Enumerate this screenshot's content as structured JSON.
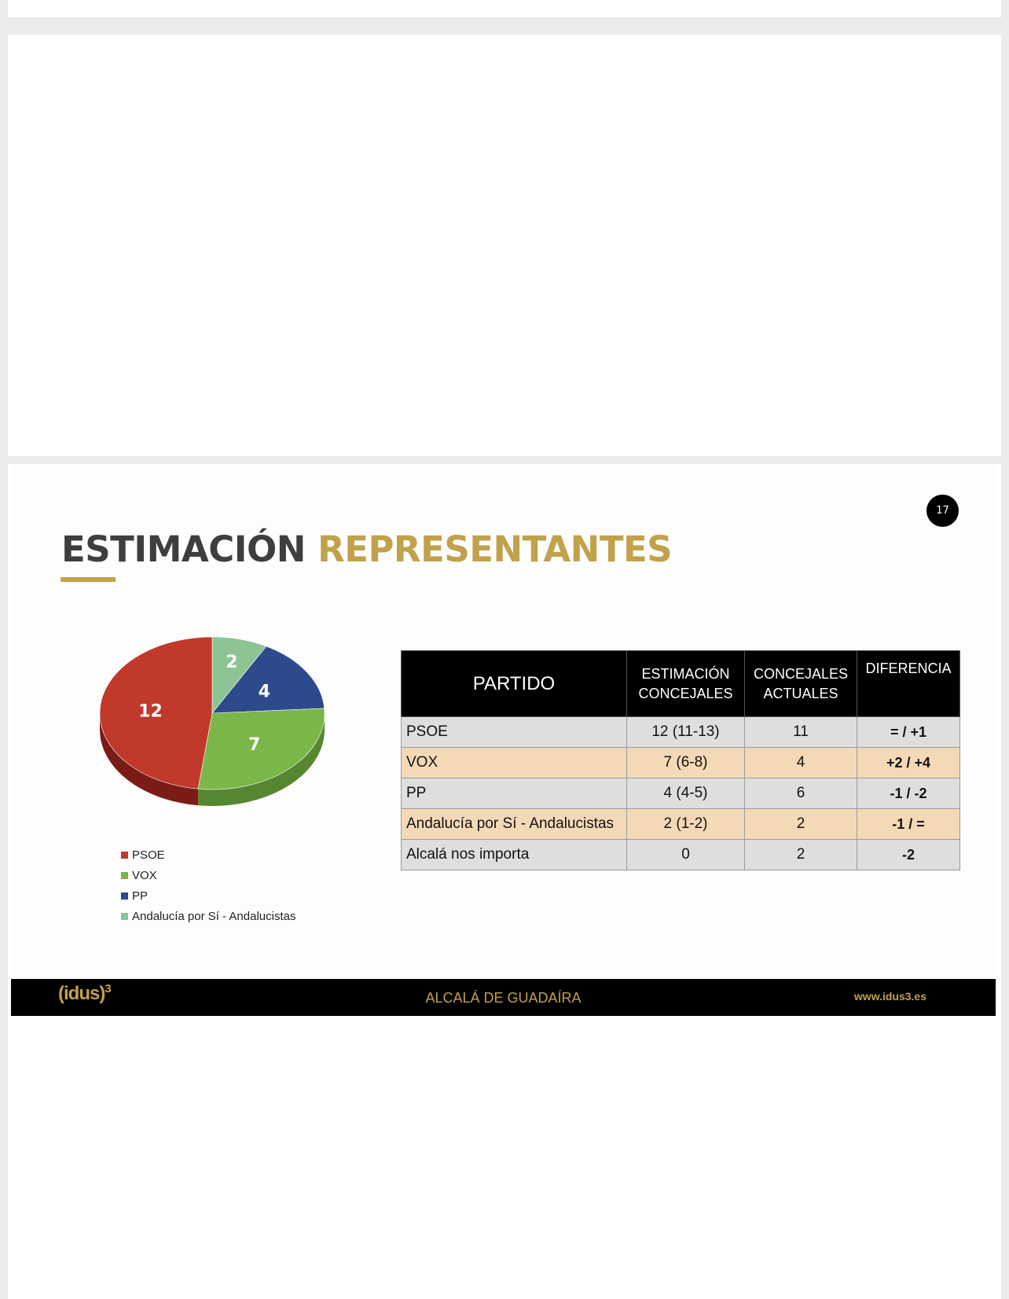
{
  "page_number": "17",
  "title": {
    "part1": "ESTIMACIÓN",
    "part2": "REPRESENTANTES"
  },
  "colors": {
    "accent_gold": "#c2a14b",
    "title_gray": "#3e3e3e"
  },
  "chart_data": {
    "type": "pie",
    "slices": [
      {
        "label": "PSOE",
        "value": 12,
        "color": "#c0392b",
        "side": "#7a1c15"
      },
      {
        "label": "VOX",
        "value": 7,
        "color": "#7ab648",
        "side": "#56862f"
      },
      {
        "label": "PP",
        "value": 4,
        "color": "#2c4a8c",
        "side": "#1a2e5c"
      },
      {
        "label": "Andalucía por Sí - Andalucistas",
        "value": 2,
        "color": "#8cc494",
        "side": "#5d9766"
      }
    ],
    "legend": [
      "PSOE",
      "VOX",
      "PP",
      "Andalucía por Sí - Andalucistas"
    ],
    "legend_position": "bottom-left"
  },
  "table": {
    "headers": {
      "party": "PARTIDO",
      "estimate": [
        "ESTIMACIÓN",
        "CONCEJALES"
      ],
      "current": [
        "CONCEJALES",
        "ACTUALES"
      ],
      "diff": "DIFERENCIA"
    },
    "rows": [
      {
        "party": "PSOE",
        "estimate": "12 (11-13)",
        "current": "11",
        "diff": "= / +1"
      },
      {
        "party": "VOX",
        "estimate": "7 (6-8)",
        "current": "4",
        "diff": "+2 / +4"
      },
      {
        "party": "PP",
        "estimate": "4 (4-5)",
        "current": "6",
        "diff": "-1 / -2"
      },
      {
        "party": "Andalucía por Sí - Andalucistas",
        "estimate": "2 (1-2)",
        "current": "2",
        "diff": "-1 / ="
      },
      {
        "party": "Alcalá nos importa",
        "estimate": "0",
        "current": "2",
        "diff": "-2"
      }
    ]
  },
  "footer": {
    "logo": "(idus)",
    "logo_sup": "3",
    "center": "ALCALÁ DE GUADAÍRA",
    "url": "www.idus3.es"
  }
}
